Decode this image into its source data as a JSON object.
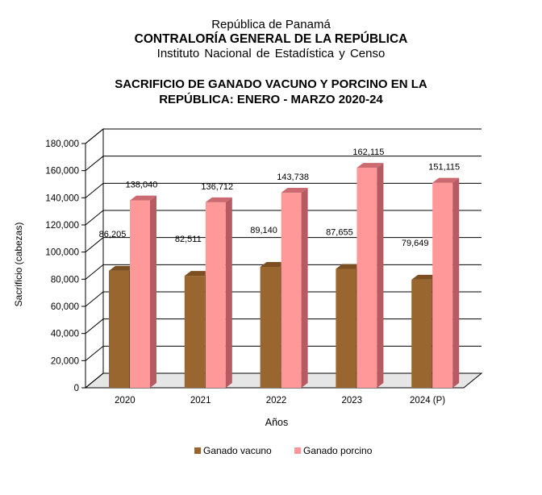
{
  "header": {
    "line1": "República de Panamá",
    "line2": "CONTRALORÍA GENERAL DE LA REPÚBLICA",
    "line3": "Instituto  Nacional  de Estadística  y  Censo"
  },
  "chart_data": {
    "type": "bar",
    "title_line1": "SACRIFICIO DE GANADO VACUNO Y PORCINO EN LA",
    "title_line2": "REPÚBLICA: ENERO - MARZO 2020-24",
    "categories": [
      "2020",
      "2021",
      "2022",
      "2023",
      "2024 (P)"
    ],
    "series": [
      {
        "name": "Ganado vacuno",
        "values": [
          86205,
          82511,
          89140,
          87655,
          79649
        ],
        "labels": [
          "86,205",
          "82,511",
          "89,140",
          "87,655",
          "79,649"
        ],
        "color": "#9a6630",
        "top_color": "#7c4f22",
        "side_color": "#6b4219"
      },
      {
        "name": "Ganado porcino",
        "values": [
          138040,
          136712,
          143738,
          162115,
          151115
        ],
        "labels": [
          "138,040",
          "136,712",
          "143,738",
          "162,115",
          "151,115"
        ],
        "color": "#ff9999",
        "top_color": "#cc6a72",
        "side_color": "#b85a62"
      }
    ],
    "xlabel": "Años",
    "ylabel": "Sacrificio (cabezas)",
    "ylim": [
      0,
      180000
    ],
    "yticks": [
      0,
      20000,
      40000,
      60000,
      80000,
      100000,
      120000,
      140000,
      160000,
      180000
    ],
    "ytick_labels": [
      "0",
      "20,000",
      "40,000",
      "60,000",
      "80,000",
      "100,000",
      "120,000",
      "140,000",
      "160,000",
      "180,000"
    ],
    "grid": true,
    "legend": "bottom"
  }
}
